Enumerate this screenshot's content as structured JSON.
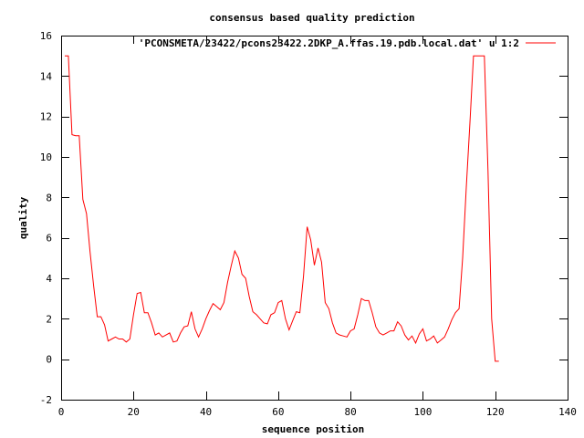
{
  "chart_data": {
    "type": "line",
    "title": "consensus based quality prediction",
    "xlabel": "sequence position",
    "ylabel": "quality",
    "xlim": [
      0,
      140
    ],
    "ylim": [
      -2,
      16
    ],
    "xticks": [
      0,
      20,
      40,
      60,
      80,
      100,
      120,
      140
    ],
    "yticks": [
      -2,
      0,
      2,
      4,
      6,
      8,
      10,
      12,
      14,
      16
    ],
    "grid": false,
    "legend_position": "top-right",
    "series": [
      {
        "name": "'PCONSMETA/23422/pcons23422.2DKP_A.ffas.19.pdb.local.dat' u 1:2",
        "color": "#ff0000",
        "x": [
          1,
          2,
          3,
          4,
          5,
          6,
          7,
          8,
          9,
          10,
          11,
          12,
          13,
          14,
          15,
          16,
          17,
          18,
          19,
          20,
          21,
          22,
          23,
          24,
          25,
          26,
          27,
          28,
          29,
          30,
          31,
          32,
          33,
          34,
          35,
          36,
          37,
          38,
          39,
          40,
          41,
          42,
          43,
          44,
          45,
          46,
          47,
          48,
          49,
          50,
          51,
          52,
          53,
          54,
          55,
          56,
          57,
          58,
          59,
          60,
          61,
          62,
          63,
          64,
          65,
          66,
          67,
          68,
          69,
          70,
          71,
          72,
          73,
          74,
          75,
          76,
          77,
          78,
          79,
          80,
          81,
          82,
          83,
          84,
          85,
          86,
          87,
          88,
          89,
          90,
          91,
          92,
          93,
          94,
          95,
          96,
          97,
          98,
          99,
          100,
          101,
          102,
          103,
          104,
          105,
          106,
          107,
          108,
          109,
          110,
          111,
          112,
          113,
          114,
          115,
          116,
          117,
          118,
          119,
          120,
          121
        ],
        "y": [
          15,
          15,
          11.1,
          11.05,
          11.05,
          7.9,
          7.2,
          5.3,
          3.6,
          2.1,
          2.1,
          1.7,
          0.9,
          1.0,
          1.1,
          1.0,
          1.0,
          0.85,
          1.0,
          2.2,
          3.25,
          3.3,
          2.3,
          2.3,
          1.8,
          1.2,
          1.3,
          1.1,
          1.2,
          1.3,
          0.85,
          0.9,
          1.3,
          1.6,
          1.65,
          2.35,
          1.5,
          1.1,
          1.5,
          2.0,
          2.4,
          2.75,
          2.6,
          2.45,
          2.8,
          3.8,
          4.6,
          5.35,
          5.0,
          4.2,
          4.0,
          3.1,
          2.35,
          2.2,
          2.0,
          1.8,
          1.75,
          2.2,
          2.3,
          2.8,
          2.9,
          2.0,
          1.45,
          1.9,
          2.35,
          2.3,
          4.1,
          6.55,
          5.9,
          4.65,
          5.5,
          4.8,
          2.8,
          2.5,
          1.8,
          1.3,
          1.2,
          1.15,
          1.1,
          1.4,
          1.5,
          2.2,
          3.0,
          2.9,
          2.9,
          2.3,
          1.6,
          1.3,
          1.2,
          1.3,
          1.4,
          1.4,
          1.85,
          1.65,
          1.2,
          0.95,
          1.15,
          0.8,
          1.25,
          1.5,
          0.9,
          1.0,
          1.15,
          0.8,
          0.95,
          1.1,
          1.5,
          1.95,
          2.3,
          2.5,
          5.0,
          8.5,
          11.7,
          15,
          15,
          15,
          15,
          9.3,
          2.0,
          -0.1,
          -0.1
        ]
      }
    ]
  }
}
